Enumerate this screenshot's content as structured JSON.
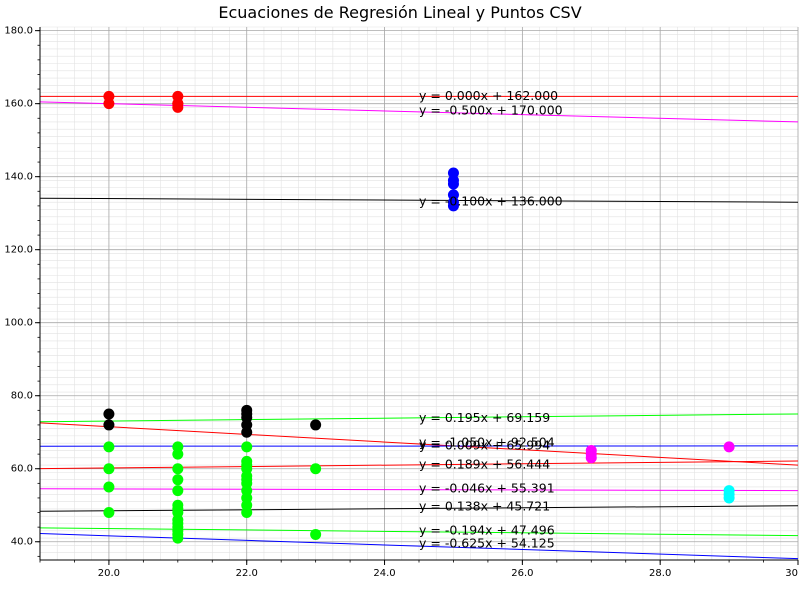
{
  "chart_data": {
    "type": "scatter",
    "title": "Ecuaciones de Regresión Lineal y Puntos CSV",
    "xlabel": "",
    "ylabel": "",
    "xlim": [
      19,
      30
    ],
    "ylim": [
      35,
      181
    ],
    "xticks": [
      20,
      22,
      24,
      26,
      28,
      30
    ],
    "yticks": [
      40,
      60,
      80,
      100,
      120,
      140,
      160,
      180
    ],
    "xtick_labels": [
      "20.0",
      "22.0",
      "24.0",
      "26.0",
      "28.0",
      "30"
    ],
    "ytick_labels": [
      "40.0",
      "60.0",
      "80.0",
      "100.0",
      "120.0",
      "140.0",
      "160.0",
      "180.0"
    ],
    "grid": true,
    "points": [
      {
        "color": "#ff0000",
        "x": [
          20,
          20,
          21,
          21,
          21,
          21
        ],
        "y": [
          162,
          160,
          162,
          160,
          160,
          159
        ]
      },
      {
        "color": "#0000ff",
        "x": [
          25,
          25,
          25,
          25,
          25,
          25
        ],
        "y": [
          141,
          139,
          138,
          135,
          132,
          133
        ]
      },
      {
        "color": "#000000",
        "x": [
          20,
          20,
          22,
          22,
          22,
          22,
          22,
          23
        ],
        "y": [
          75,
          72,
          76,
          74,
          72,
          70,
          75,
          72
        ]
      },
      {
        "color": "#00ff00",
        "x": [
          20,
          20,
          20,
          20,
          21,
          21,
          21,
          21,
          21,
          21,
          21,
          21,
          21,
          21,
          21,
          21,
          21,
          21,
          22,
          22,
          22,
          22,
          22,
          22,
          22,
          22,
          22,
          22,
          22,
          23,
          23
        ],
        "y": [
          66,
          60,
          55,
          48,
          66,
          64,
          60,
          57,
          54,
          50,
          48,
          46,
          45,
          44,
          43,
          42,
          41,
          49,
          66,
          62,
          60,
          58,
          56,
          54,
          52,
          50,
          48,
          61,
          57,
          60,
          42
        ]
      },
      {
        "color": "#ff00ff",
        "x": [
          27,
          27,
          27,
          29
        ],
        "y": [
          65,
          64,
          63,
          66
        ]
      },
      {
        "color": "#00ffff",
        "x": [
          29,
          29,
          29
        ],
        "y": [
          54,
          53,
          52
        ]
      }
    ],
    "lines": [
      {
        "color": "#ff0000",
        "slope": 0.0,
        "intercept": 162.0,
        "label": "y = 0.000x + 162.000",
        "label_y": 162
      },
      {
        "color": "#ff00ff",
        "slope": -0.5,
        "intercept": 170.0,
        "label": "y = -0.500x + 170.000",
        "label_y": 158
      },
      {
        "color": "#000000",
        "slope": -0.1,
        "intercept": 136.0,
        "label": "y = -0.100x + 136.000",
        "label_y": 133
      },
      {
        "color": "#00ff00",
        "slope": 0.195,
        "intercept": 69.159,
        "label": "y = 0.195x + 69.159",
        "label_y": 73.8
      },
      {
        "color": "#ff0000",
        "slope": -1.05,
        "intercept": 92.504,
        "label": "y = -1.050x + 92.504",
        "label_y": 67.0
      },
      {
        "color": "#0000ff",
        "slope": 0.009,
        "intercept": 65.994,
        "label": "y = 0.009x + 65.994",
        "label_y": 66.2
      },
      {
        "color": "#ff0000",
        "slope": 0.189,
        "intercept": 56.444,
        "label": "y = 0.189x + 56.444",
        "label_y": 61.0
      },
      {
        "color": "#ff00ff",
        "slope": -0.046,
        "intercept": 55.391,
        "label": "y = -0.046x + 55.391",
        "label_y": 54.5
      },
      {
        "color": "#000000",
        "slope": 0.138,
        "intercept": 45.721,
        "label": "y = 0.138x + 45.721",
        "label_y": 49.5
      },
      {
        "color": "#00ff00",
        "slope": -0.194,
        "intercept": 47.496,
        "label": "y = -0.194x + 47.496",
        "label_y": 43.0
      },
      {
        "color": "#0000ff",
        "slope": -0.625,
        "intercept": 54.125,
        "label": "y = -0.625x + 54.125",
        "label_y": 39.4
      }
    ],
    "label_x": 24.5
  }
}
